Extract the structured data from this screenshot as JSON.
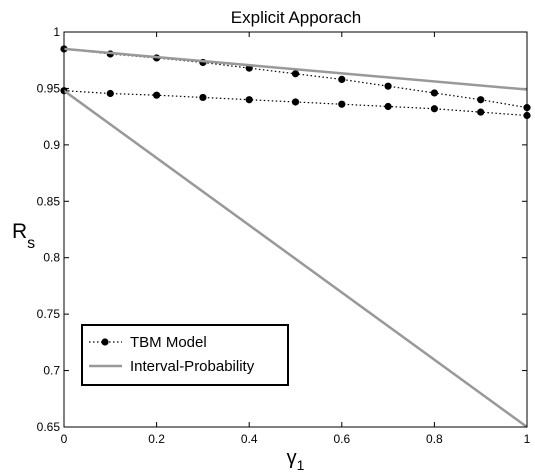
{
  "chart_data": {
    "type": "line",
    "title": "Explicit Apporach",
    "xlabel": "γ1",
    "ylabel": "Rs",
    "xlim": [
      0,
      1
    ],
    "ylim": [
      0.65,
      1
    ],
    "xticks": [
      0,
      0.2,
      0.4,
      0.6,
      0.8,
      1
    ],
    "yticks": [
      0.65,
      0.7,
      0.75,
      0.8,
      0.85,
      0.9,
      0.95,
      1
    ],
    "xtick_labels": [
      "0",
      "0.2",
      "0.4",
      "0.6",
      "0.8",
      "1"
    ],
    "ytick_labels": [
      "0.65",
      "0.7",
      "0.75",
      "0.8",
      "0.85",
      "0.9",
      "0.95",
      "1"
    ],
    "grid": false,
    "legend_position": "bottom-left",
    "legend": [
      "TBM Model",
      "Interval-Probability"
    ],
    "series": [
      {
        "name": "TBM Model",
        "style": "dotted-markers",
        "color": "#000000",
        "x": [
          0,
          0.1,
          0.2,
          0.3,
          0.4,
          0.5,
          0.6,
          0.7,
          0.8,
          0.9,
          1
        ],
        "y": [
          0.985,
          0.9805,
          0.977,
          0.973,
          0.968,
          0.963,
          0.958,
          0.952,
          0.946,
          0.94,
          0.933
        ]
      },
      {
        "name": "TBM Model",
        "style": "dotted-markers",
        "color": "#000000",
        "x": [
          0,
          0.1,
          0.2,
          0.3,
          0.4,
          0.5,
          0.6,
          0.7,
          0.8,
          0.9,
          1
        ],
        "y": [
          0.948,
          0.9455,
          0.944,
          0.942,
          0.94,
          0.938,
          0.936,
          0.934,
          0.932,
          0.929,
          0.926
        ]
      },
      {
        "name": "Interval-Probability",
        "style": "solid",
        "color": "#999999",
        "x": [
          0,
          1
        ],
        "y": [
          0.985,
          0.949
        ]
      },
      {
        "name": "Interval-Probability",
        "style": "solid",
        "color": "#999999",
        "x": [
          0,
          1
        ],
        "y": [
          0.948,
          0.65
        ]
      }
    ]
  }
}
